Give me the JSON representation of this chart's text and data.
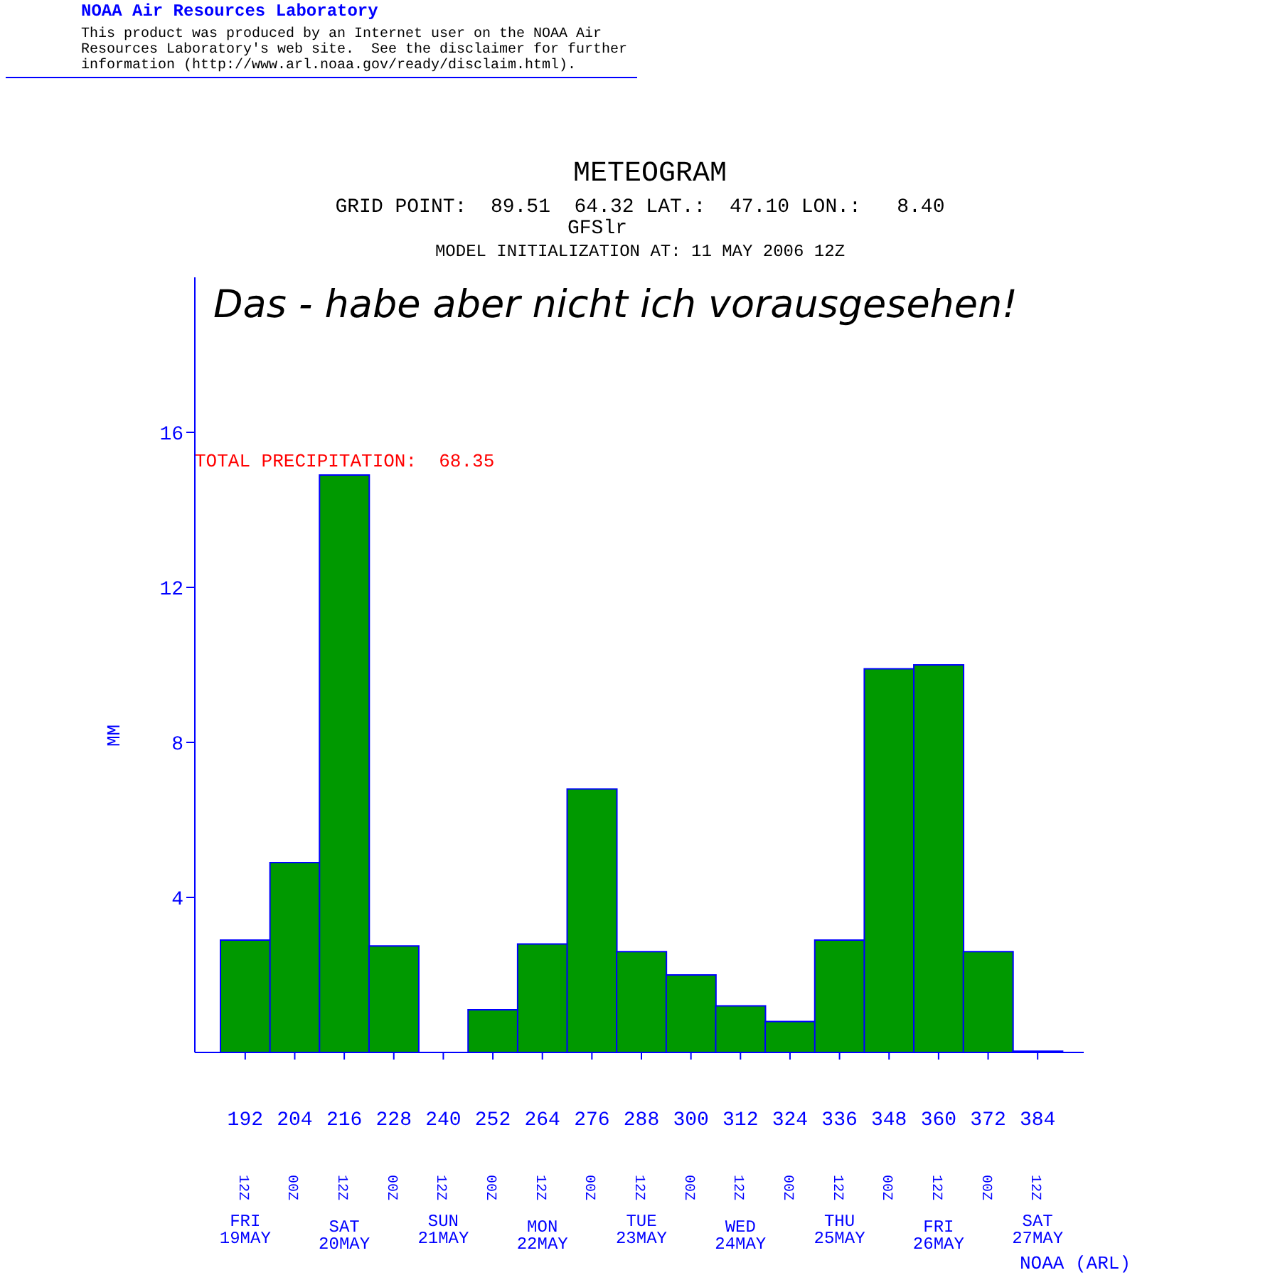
{
  "chart_data": {
    "type": "bar",
    "title": "METEOGRAM",
    "subtitle": "GRID POINT:  89.51  64.32 LAT.:  47.10 LON.:   8.40\nGFSlr\nMODEL INITIALIZATION AT: 11 MAY 2006 12Z",
    "ylabel": "MM",
    "categories": [
      "192",
      "204",
      "216",
      "228",
      "240",
      "252",
      "264",
      "276",
      "288",
      "300",
      "312",
      "324",
      "336",
      "348",
      "360",
      "372",
      "384"
    ],
    "values": [
      2.9,
      4.9,
      14.9,
      2.75,
      0,
      1.1,
      2.8,
      6.8,
      2.6,
      2.0,
      1.2,
      0.8,
      2.9,
      9.9,
      10.0,
      2.6,
      0.03
    ],
    "color": "#009900",
    "ylim": [
      0,
      20
    ],
    "yticks": [
      4,
      8,
      12,
      16
    ],
    "grid": false,
    "annotations": [
      "NOAA Air Resources Laboratory",
      "This product was produced by an Internet user on the NOAA Air\nResources Laboratory's web site.  See the disclaimer for further\ninformation (http://www.arl.noaa.gov/ready/disclaim.html).",
      "Das - habe aber nicht ich vorausgesehen!",
      "TOTAL PRECIPITATION:  68.35",
      "12Z",
      "00Z",
      "12Z",
      "00Z",
      "12Z",
      "00Z",
      "12Z",
      "00Z",
      "12Z",
      "00Z",
      "12Z",
      "00Z",
      "12Z",
      "00Z",
      "12Z",
      "00Z",
      "12Z",
      "FRI\n19MAY",
      "SAT\n20MAY",
      "SUN\n21MAY",
      "MON\n22MAY",
      "TUE\n23MAY",
      "WED\n24MAY",
      "THU\n25MAY",
      "FRI\n26MAY",
      "SAT\n27MAY",
      "NOAA (ARL)"
    ]
  }
}
